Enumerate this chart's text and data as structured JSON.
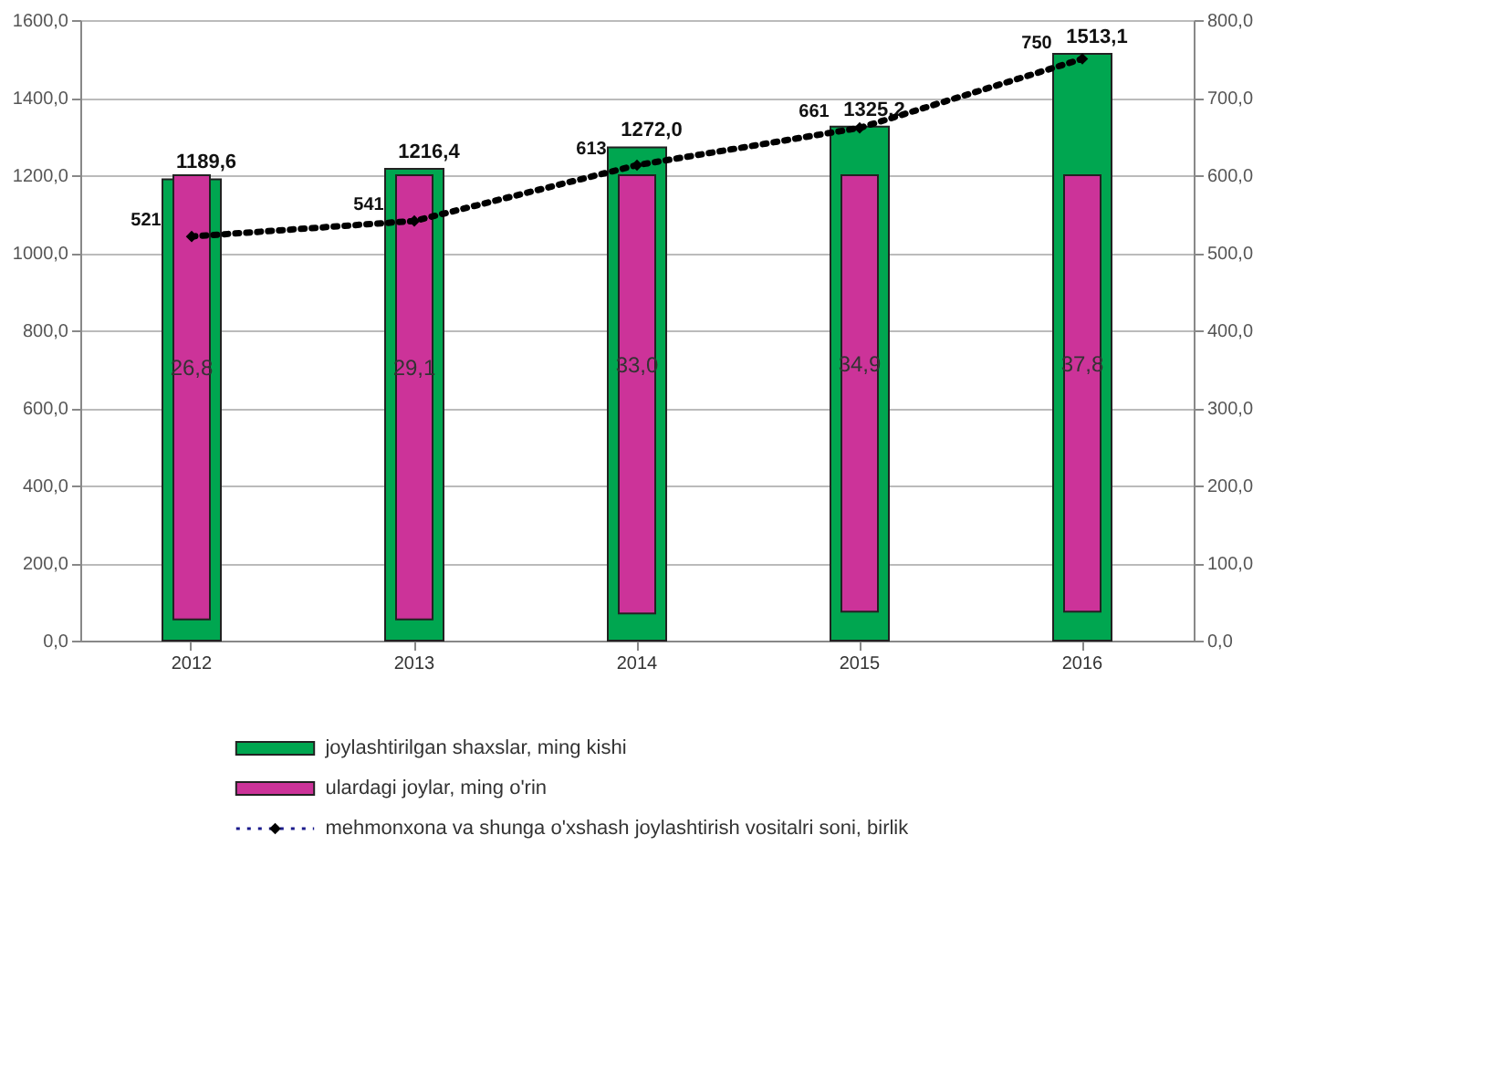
{
  "chart_data": {
    "type": "bar",
    "categories": [
      "2012",
      "2013",
      "2014",
      "2015",
      "2016"
    ],
    "series": [
      {
        "name": "joylashtirilgan  shaxslar, ming kishi",
        "color": "#00a650",
        "values": [
          1189.6,
          1216.4,
          1272.0,
          1325.2,
          1513.1
        ],
        "value_labels": [
          "1189,6",
          "1216,4",
          "1272,0",
          "1325,2",
          "1513,1"
        ]
      },
      {
        "name": "ulardagi  joylar, ming o'rin",
        "color": "#cc3399",
        "base": [
          55,
          55,
          70,
          75,
          75
        ],
        "values": [
          1145,
          1145,
          1130,
          1125,
          1125
        ]
      },
      {
        "name": "mehmonxona va shunga  o'xshash  joylashtirish  vositalri  soni, birlik",
        "type": "line",
        "axis": "y2",
        "color": "#000000",
        "marker": "diamond",
        "line_style": "dotted",
        "values": [
          521,
          541,
          613,
          661,
          750
        ],
        "value_labels": [
          "521",
          "541",
          "613",
          "661",
          "750"
        ]
      }
    ],
    "ylim": [
      0,
      1600
    ],
    "yticks": [
      {
        "value": 0,
        "label": "0,0"
      },
      {
        "value": 200,
        "label": "200,0"
      },
      {
        "value": 400,
        "label": "400,0"
      },
      {
        "value": 600,
        "label": "600,0"
      },
      {
        "value": 800,
        "label": "800,0"
      },
      {
        "value": 1000,
        "label": "1000,0"
      },
      {
        "value": 1200,
        "label": "1200,0"
      },
      {
        "value": 1400,
        "label": "1400,0"
      },
      {
        "value": 1600,
        "label": "1600,0"
      }
    ],
    "y2lim": [
      0,
      800
    ],
    "y2ticks": [
      {
        "value": 0,
        "label": "0,0"
      },
      {
        "value": 100,
        "label": "100,0"
      },
      {
        "value": 200,
        "label": "200,0"
      },
      {
        "value": 300,
        "label": "300,0"
      },
      {
        "value": 400,
        "label": "400,0"
      },
      {
        "value": 500,
        "label": "500,0"
      },
      {
        "value": 600,
        "label": "600,0"
      },
      {
        "value": 700,
        "label": "700,0"
      },
      {
        "value": 800,
        "label": "800,0"
      }
    ],
    "annotations": [
      "26,8",
      "29,1",
      "33,0",
      "34,9",
      "37,8"
    ],
    "grid": "y",
    "legend": "bottom"
  }
}
